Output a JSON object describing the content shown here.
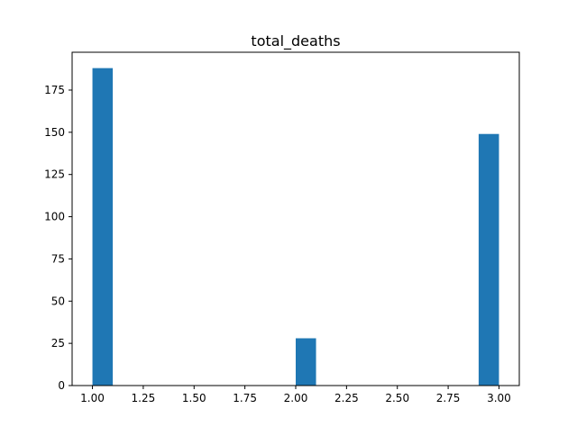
{
  "chart_data": {
    "type": "bar",
    "title": "total_deaths",
    "xlabel": "",
    "ylabel": "",
    "xlim": [
      0.9,
      3.1
    ],
    "ylim": [
      0,
      197.4
    ],
    "x_ticks": [
      1.0,
      1.25,
      1.5,
      1.75,
      2.0,
      2.25,
      2.5,
      2.75,
      3.0
    ],
    "x_tick_labels": [
      "1.00",
      "1.25",
      "1.50",
      "1.75",
      "2.00",
      "2.25",
      "2.50",
      "2.75",
      "3.00"
    ],
    "y_ticks": [
      0,
      25,
      50,
      75,
      100,
      125,
      150,
      175
    ],
    "y_tick_labels": [
      "0",
      "25",
      "50",
      "75",
      "100",
      "125",
      "150",
      "175"
    ],
    "bins": [
      {
        "x0": 1.0,
        "x1": 1.1,
        "count": 188
      },
      {
        "x0": 2.0,
        "x1": 2.1,
        "count": 28
      },
      {
        "x0": 2.9,
        "x1": 3.0,
        "count": 149
      }
    ],
    "bar_color": "#1f77b4",
    "grid": false,
    "legend": "none"
  }
}
